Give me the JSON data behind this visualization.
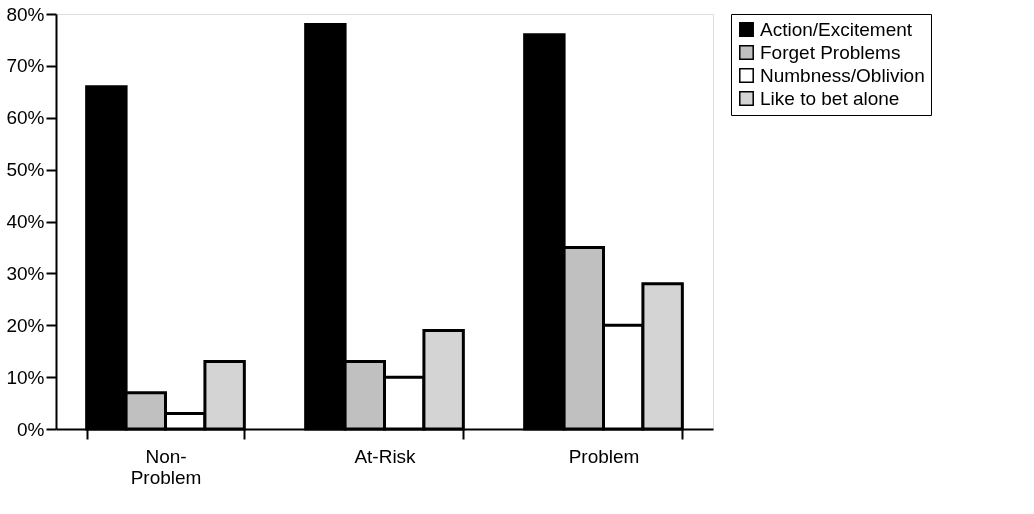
{
  "chart_data": {
    "type": "bar",
    "categories": [
      "Non-Problem",
      "At-Risk",
      "Problem"
    ],
    "series": [
      {
        "name": "Action/Excitement",
        "color": "#000000",
        "values": [
          66,
          78,
          76
        ]
      },
      {
        "name": "Forget Problems",
        "color": "#c0c0c0",
        "values": [
          7,
          13,
          35
        ]
      },
      {
        "name": "Numbness/Oblivion",
        "color": "#ffffff",
        "values": [
          3,
          10,
          20
        ]
      },
      {
        "name": "Like to bet alone",
        "color": "#d4d4d4",
        "values": [
          13,
          19,
          28
        ]
      }
    ],
    "ylim": [
      0,
      80
    ],
    "yticks": [
      {
        "value": 0,
        "label": "0%"
      },
      {
        "value": 10,
        "label": "10%"
      },
      {
        "value": 20,
        "label": "20%"
      },
      {
        "value": 30,
        "label": "30%"
      },
      {
        "value": 40,
        "label": "40%"
      },
      {
        "value": 50,
        "label": "50%"
      },
      {
        "value": 60,
        "label": "60%"
      },
      {
        "value": 70,
        "label": "70%"
      },
      {
        "value": 80,
        "label": "80%"
      }
    ],
    "grid": false,
    "legend": "right"
  }
}
